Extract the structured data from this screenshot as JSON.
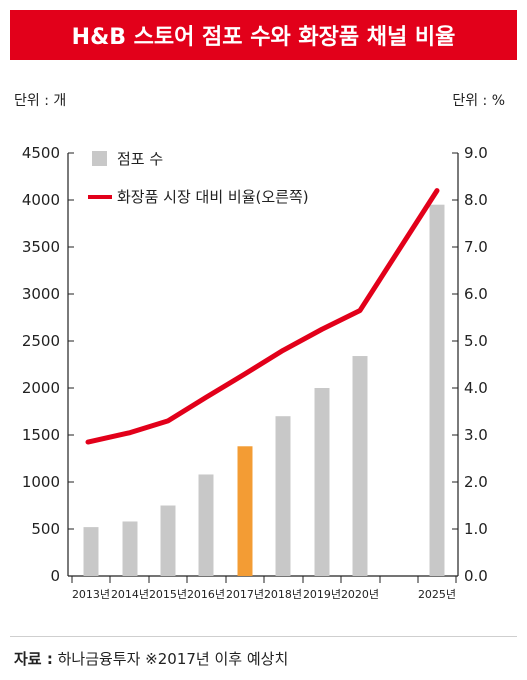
{
  "title": "H&B 스토어 점포 수와 화장품 채널 비율",
  "unit_left": "단위 : 개",
  "unit_right": "단위 : %",
  "source_label": "자료 :",
  "source_text": "하나금융투자   ※2017년 이후 예상치",
  "colors": {
    "title_bg": "#e2001a",
    "bar": "#c8c8c8",
    "bar_highlight": "#f39c34",
    "line": "#e2001a"
  },
  "chart_data": {
    "type": "bar",
    "categories": [
      "2013년",
      "2014년",
      "2015년",
      "2016년",
      "2017년",
      "2018년",
      "2019년",
      "2020년",
      "2025년"
    ],
    "series": [
      {
        "name": "점포 수",
        "type": "bar",
        "axis": "left",
        "values": [
          520,
          580,
          750,
          1080,
          1380,
          1700,
          2000,
          2340,
          3950
        ]
      },
      {
        "name": "화장품 시장 대비 비율(오른쪽)",
        "type": "line",
        "axis": "right",
        "values": [
          2.85,
          3.05,
          3.3,
          3.8,
          4.3,
          4.8,
          5.25,
          5.65,
          8.2
        ]
      }
    ],
    "highlight_category": "2017년",
    "y_left": {
      "min": 0,
      "max": 4500,
      "ticks": [
        "0",
        "500",
        "1000",
        "1500",
        "2000",
        "2500",
        "3000",
        "3500",
        "4000",
        "4500"
      ]
    },
    "y_right": {
      "min": 0,
      "max": 9,
      "ticks": [
        "0.0",
        "1.0",
        "2.0",
        "3.0",
        "4.0",
        "5.0",
        "6.0",
        "7.0",
        "8.0",
        "9.0"
      ]
    },
    "legend_position": "top-left",
    "grid": false
  }
}
